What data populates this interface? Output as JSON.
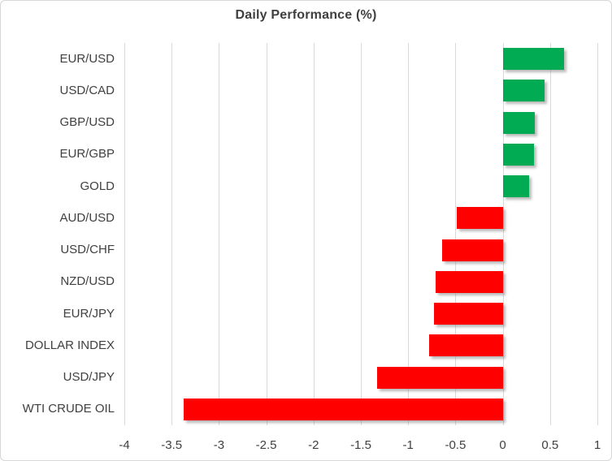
{
  "chart_data": {
    "type": "bar",
    "orientation": "horizontal",
    "title": "Daily Performance (%)",
    "categories": [
      "EUR/USD",
      "USD/CAD",
      "GBP/USD",
      "EUR/GBP",
      "GOLD",
      "AUD/USD",
      "USD/CHF",
      "NZD/USD",
      "EUR/JPY",
      "DOLLAR INDEX",
      "USD/JPY",
      "WTI CRUDE OIL"
    ],
    "values": [
      0.65,
      0.44,
      0.34,
      0.33,
      0.28,
      -0.49,
      -0.64,
      -0.71,
      -0.73,
      -0.78,
      -1.33,
      -3.37
    ],
    "xlabel": "",
    "ylabel": "",
    "xlim": [
      -4,
      1
    ],
    "tick_labels": [
      "-4",
      "-3.5",
      "-3",
      "-2.5",
      "-2",
      "-1.5",
      "-1",
      "-0.5",
      "0",
      "0.5",
      "1"
    ],
    "grid": true,
    "legend": false,
    "positive_color": "#00ab53",
    "negative_color": "#fe0000",
    "gridline_color": "#d9d9d9",
    "text_color": "#404040"
  }
}
